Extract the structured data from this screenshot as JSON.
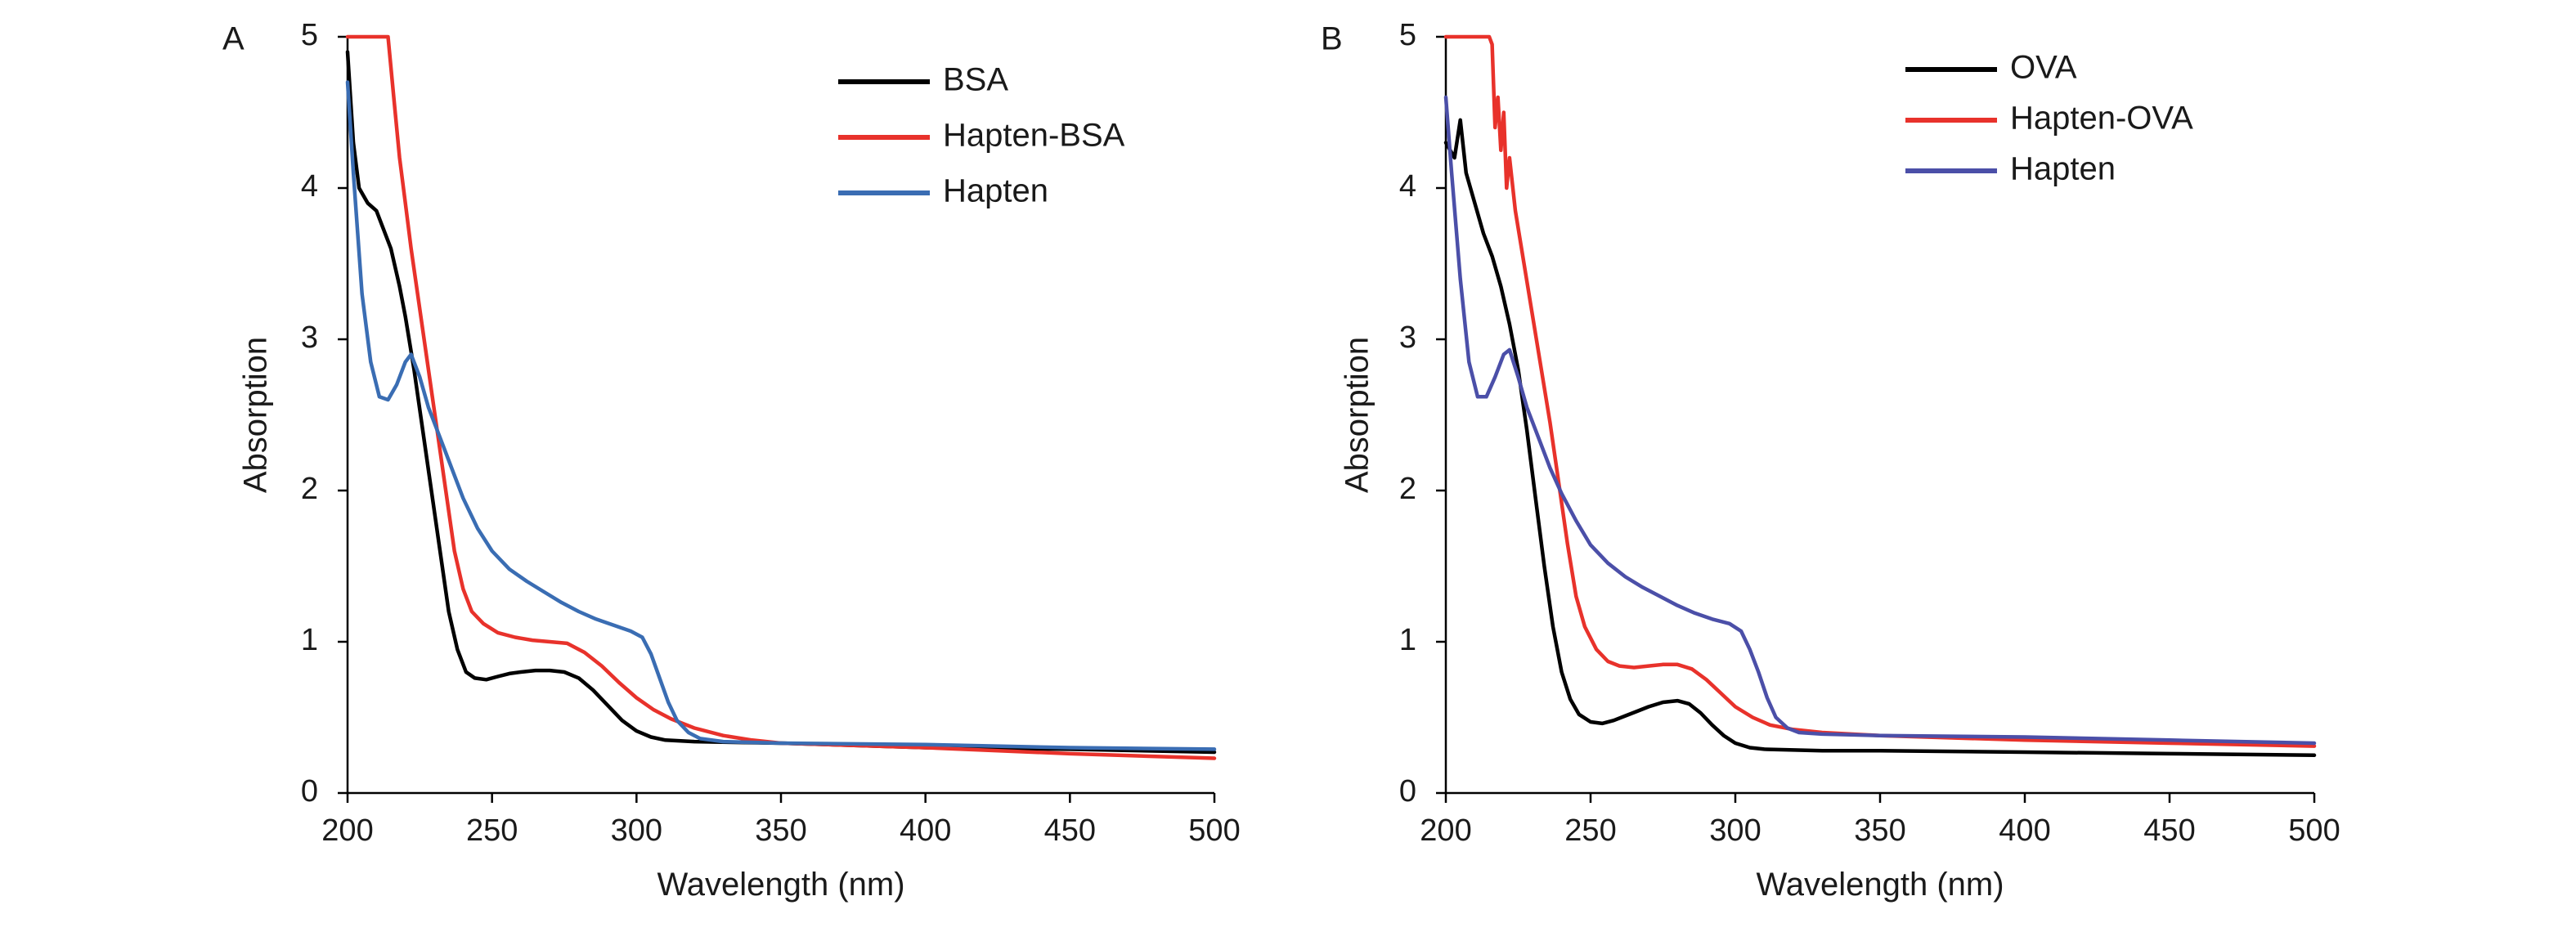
{
  "chart_data": [
    {
      "panel_label": "A",
      "type": "line",
      "xlabel": "Wavelength (nm)",
      "ylabel": "Absorption",
      "xlim": [
        200,
        500
      ],
      "ylim": [
        0,
        5
      ],
      "xticks": [
        200,
        250,
        300,
        350,
        400,
        450,
        500
      ],
      "yticks": [
        0,
        1,
        2,
        3,
        4,
        5
      ],
      "grid": false,
      "legend_position": "top-right",
      "series": [
        {
          "name": "BSA",
          "color": "#000000",
          "points": [
            [
              200,
              4.9
            ],
            [
              202,
              4.3
            ],
            [
              204,
              4.0
            ],
            [
              207,
              3.9
            ],
            [
              210,
              3.85
            ],
            [
              212,
              3.75
            ],
            [
              215,
              3.6
            ],
            [
              218,
              3.35
            ],
            [
              220,
              3.15
            ],
            [
              223,
              2.8
            ],
            [
              226,
              2.4
            ],
            [
              229,
              2.0
            ],
            [
              232,
              1.6
            ],
            [
              235,
              1.2
            ],
            [
              238,
              0.95
            ],
            [
              241,
              0.8
            ],
            [
              244,
              0.76
            ],
            [
              248,
              0.75
            ],
            [
              252,
              0.77
            ],
            [
              256,
              0.79
            ],
            [
              260,
              0.8
            ],
            [
              265,
              0.81
            ],
            [
              270,
              0.81
            ],
            [
              275,
              0.8
            ],
            [
              280,
              0.76
            ],
            [
              285,
              0.68
            ],
            [
              290,
              0.58
            ],
            [
              295,
              0.48
            ],
            [
              300,
              0.41
            ],
            [
              305,
              0.37
            ],
            [
              310,
              0.35
            ],
            [
              320,
              0.34
            ],
            [
              350,
              0.33
            ],
            [
              400,
              0.3
            ],
            [
              450,
              0.29
            ],
            [
              500,
              0.27
            ]
          ]
        },
        {
          "name": "Hapten-BSA",
          "color": "#e8322b",
          "points": [
            [
              200,
              5.0
            ],
            [
              214,
              5.0
            ],
            [
              216,
              4.6
            ],
            [
              218,
              4.2
            ],
            [
              220,
              3.9
            ],
            [
              222,
              3.6
            ],
            [
              225,
              3.2
            ],
            [
              228,
              2.8
            ],
            [
              231,
              2.4
            ],
            [
              234,
              2.0
            ],
            [
              237,
              1.6
            ],
            [
              240,
              1.35
            ],
            [
              243,
              1.2
            ],
            [
              247,
              1.12
            ],
            [
              252,
              1.06
            ],
            [
              258,
              1.03
            ],
            [
              264,
              1.01
            ],
            [
              270,
              1.0
            ],
            [
              276,
              0.99
            ],
            [
              282,
              0.93
            ],
            [
              288,
              0.84
            ],
            [
              294,
              0.73
            ],
            [
              300,
              0.63
            ],
            [
              306,
              0.55
            ],
            [
              312,
              0.49
            ],
            [
              320,
              0.43
            ],
            [
              330,
              0.38
            ],
            [
              340,
              0.35
            ],
            [
              350,
              0.33
            ],
            [
              400,
              0.3
            ],
            [
              450,
              0.26
            ],
            [
              500,
              0.23
            ]
          ]
        },
        {
          "name": "Hapten",
          "color": "#3a6db3",
          "points": [
            [
              200,
              4.7
            ],
            [
              202,
              4.1
            ],
            [
              205,
              3.3
            ],
            [
              208,
              2.85
            ],
            [
              211,
              2.62
            ],
            [
              214,
              2.6
            ],
            [
              217,
              2.7
            ],
            [
              220,
              2.85
            ],
            [
              222,
              2.9
            ],
            [
              225,
              2.75
            ],
            [
              228,
              2.55
            ],
            [
              232,
              2.35
            ],
            [
              236,
              2.15
            ],
            [
              240,
              1.95
            ],
            [
              245,
              1.75
            ],
            [
              250,
              1.6
            ],
            [
              256,
              1.48
            ],
            [
              262,
              1.4
            ],
            [
              268,
              1.33
            ],
            [
              274,
              1.26
            ],
            [
              280,
              1.2
            ],
            [
              286,
              1.15
            ],
            [
              292,
              1.11
            ],
            [
              298,
              1.07
            ],
            [
              302,
              1.03
            ],
            [
              305,
              0.92
            ],
            [
              308,
              0.76
            ],
            [
              311,
              0.6
            ],
            [
              314,
              0.48
            ],
            [
              318,
              0.4
            ],
            [
              322,
              0.36
            ],
            [
              330,
              0.34
            ],
            [
              350,
              0.33
            ],
            [
              400,
              0.32
            ],
            [
              450,
              0.3
            ],
            [
              500,
              0.29
            ]
          ]
        }
      ]
    },
    {
      "panel_label": "B",
      "type": "line",
      "xlabel": "Wavelength (nm)",
      "ylabel": "Absorption",
      "xlim": [
        200,
        500
      ],
      "ylim": [
        0,
        5
      ],
      "xticks": [
        200,
        250,
        300,
        350,
        400,
        450,
        500
      ],
      "yticks": [
        0,
        1,
        2,
        3,
        4,
        5
      ],
      "grid": false,
      "legend_position": "top-right",
      "series": [
        {
          "name": "OVA",
          "color": "#000000",
          "points": [
            [
              200,
              4.3
            ],
            [
              203,
              4.2
            ],
            [
              205,
              4.45
            ],
            [
              207,
              4.1
            ],
            [
              210,
              3.9
            ],
            [
              213,
              3.7
            ],
            [
              216,
              3.55
            ],
            [
              219,
              3.35
            ],
            [
              222,
              3.1
            ],
            [
              225,
              2.8
            ],
            [
              228,
              2.4
            ],
            [
              231,
              1.95
            ],
            [
              234,
              1.5
            ],
            [
              237,
              1.1
            ],
            [
              240,
              0.8
            ],
            [
              243,
              0.62
            ],
            [
              246,
              0.52
            ],
            [
              250,
              0.47
            ],
            [
              254,
              0.46
            ],
            [
              258,
              0.48
            ],
            [
              262,
              0.51
            ],
            [
              266,
              0.54
            ],
            [
              270,
              0.57
            ],
            [
              275,
              0.6
            ],
            [
              280,
              0.61
            ],
            [
              284,
              0.59
            ],
            [
              288,
              0.53
            ],
            [
              292,
              0.45
            ],
            [
              296,
              0.38
            ],
            [
              300,
              0.33
            ],
            [
              305,
              0.3
            ],
            [
              310,
              0.29
            ],
            [
              330,
              0.28
            ],
            [
              350,
              0.28
            ],
            [
              400,
              0.27
            ],
            [
              450,
              0.26
            ],
            [
              500,
              0.25
            ]
          ]
        },
        {
          "name": "Hapten-OVA",
          "color": "#e8322b",
          "points": [
            [
              200,
              5.0
            ],
            [
              215,
              5.0
            ],
            [
              216,
              4.95
            ],
            [
              217,
              4.4
            ],
            [
              218,
              4.6
            ],
            [
              219,
              4.25
            ],
            [
              220,
              4.5
            ],
            [
              221,
              4.0
            ],
            [
              222,
              4.2
            ],
            [
              224,
              3.85
            ],
            [
              227,
              3.5
            ],
            [
              230,
              3.15
            ],
            [
              233,
              2.8
            ],
            [
              236,
              2.45
            ],
            [
              239,
              2.05
            ],
            [
              242,
              1.65
            ],
            [
              245,
              1.3
            ],
            [
              248,
              1.1
            ],
            [
              252,
              0.95
            ],
            [
              256,
              0.87
            ],
            [
              260,
              0.84
            ],
            [
              265,
              0.83
            ],
            [
              270,
              0.84
            ],
            [
              275,
              0.85
            ],
            [
              280,
              0.85
            ],
            [
              285,
              0.82
            ],
            [
              290,
              0.75
            ],
            [
              295,
              0.66
            ],
            [
              300,
              0.57
            ],
            [
              306,
              0.5
            ],
            [
              312,
              0.45
            ],
            [
              320,
              0.42
            ],
            [
              330,
              0.4
            ],
            [
              350,
              0.38
            ],
            [
              400,
              0.35
            ],
            [
              450,
              0.33
            ],
            [
              500,
              0.31
            ]
          ]
        },
        {
          "name": "Hapten",
          "color": "#4b4fa8",
          "points": [
            [
              200,
              4.6
            ],
            [
              202,
              4.1
            ],
            [
              205,
              3.4
            ],
            [
              208,
              2.85
            ],
            [
              211,
              2.62
            ],
            [
              214,
              2.62
            ],
            [
              217,
              2.75
            ],
            [
              220,
              2.9
            ],
            [
              222,
              2.93
            ],
            [
              225,
              2.75
            ],
            [
              228,
              2.55
            ],
            [
              232,
              2.35
            ],
            [
              236,
              2.15
            ],
            [
              240,
              1.98
            ],
            [
              245,
              1.8
            ],
            [
              250,
              1.64
            ],
            [
              256,
              1.52
            ],
            [
              262,
              1.43
            ],
            [
              268,
              1.36
            ],
            [
              274,
              1.3
            ],
            [
              280,
              1.24
            ],
            [
              286,
              1.19
            ],
            [
              292,
              1.15
            ],
            [
              298,
              1.12
            ],
            [
              302,
              1.07
            ],
            [
              305,
              0.95
            ],
            [
              308,
              0.8
            ],
            [
              311,
              0.63
            ],
            [
              314,
              0.5
            ],
            [
              318,
              0.43
            ],
            [
              322,
              0.4
            ],
            [
              330,
              0.39
            ],
            [
              350,
              0.38
            ],
            [
              400,
              0.37
            ],
            [
              450,
              0.35
            ],
            [
              500,
              0.33
            ]
          ]
        }
      ]
    }
  ]
}
